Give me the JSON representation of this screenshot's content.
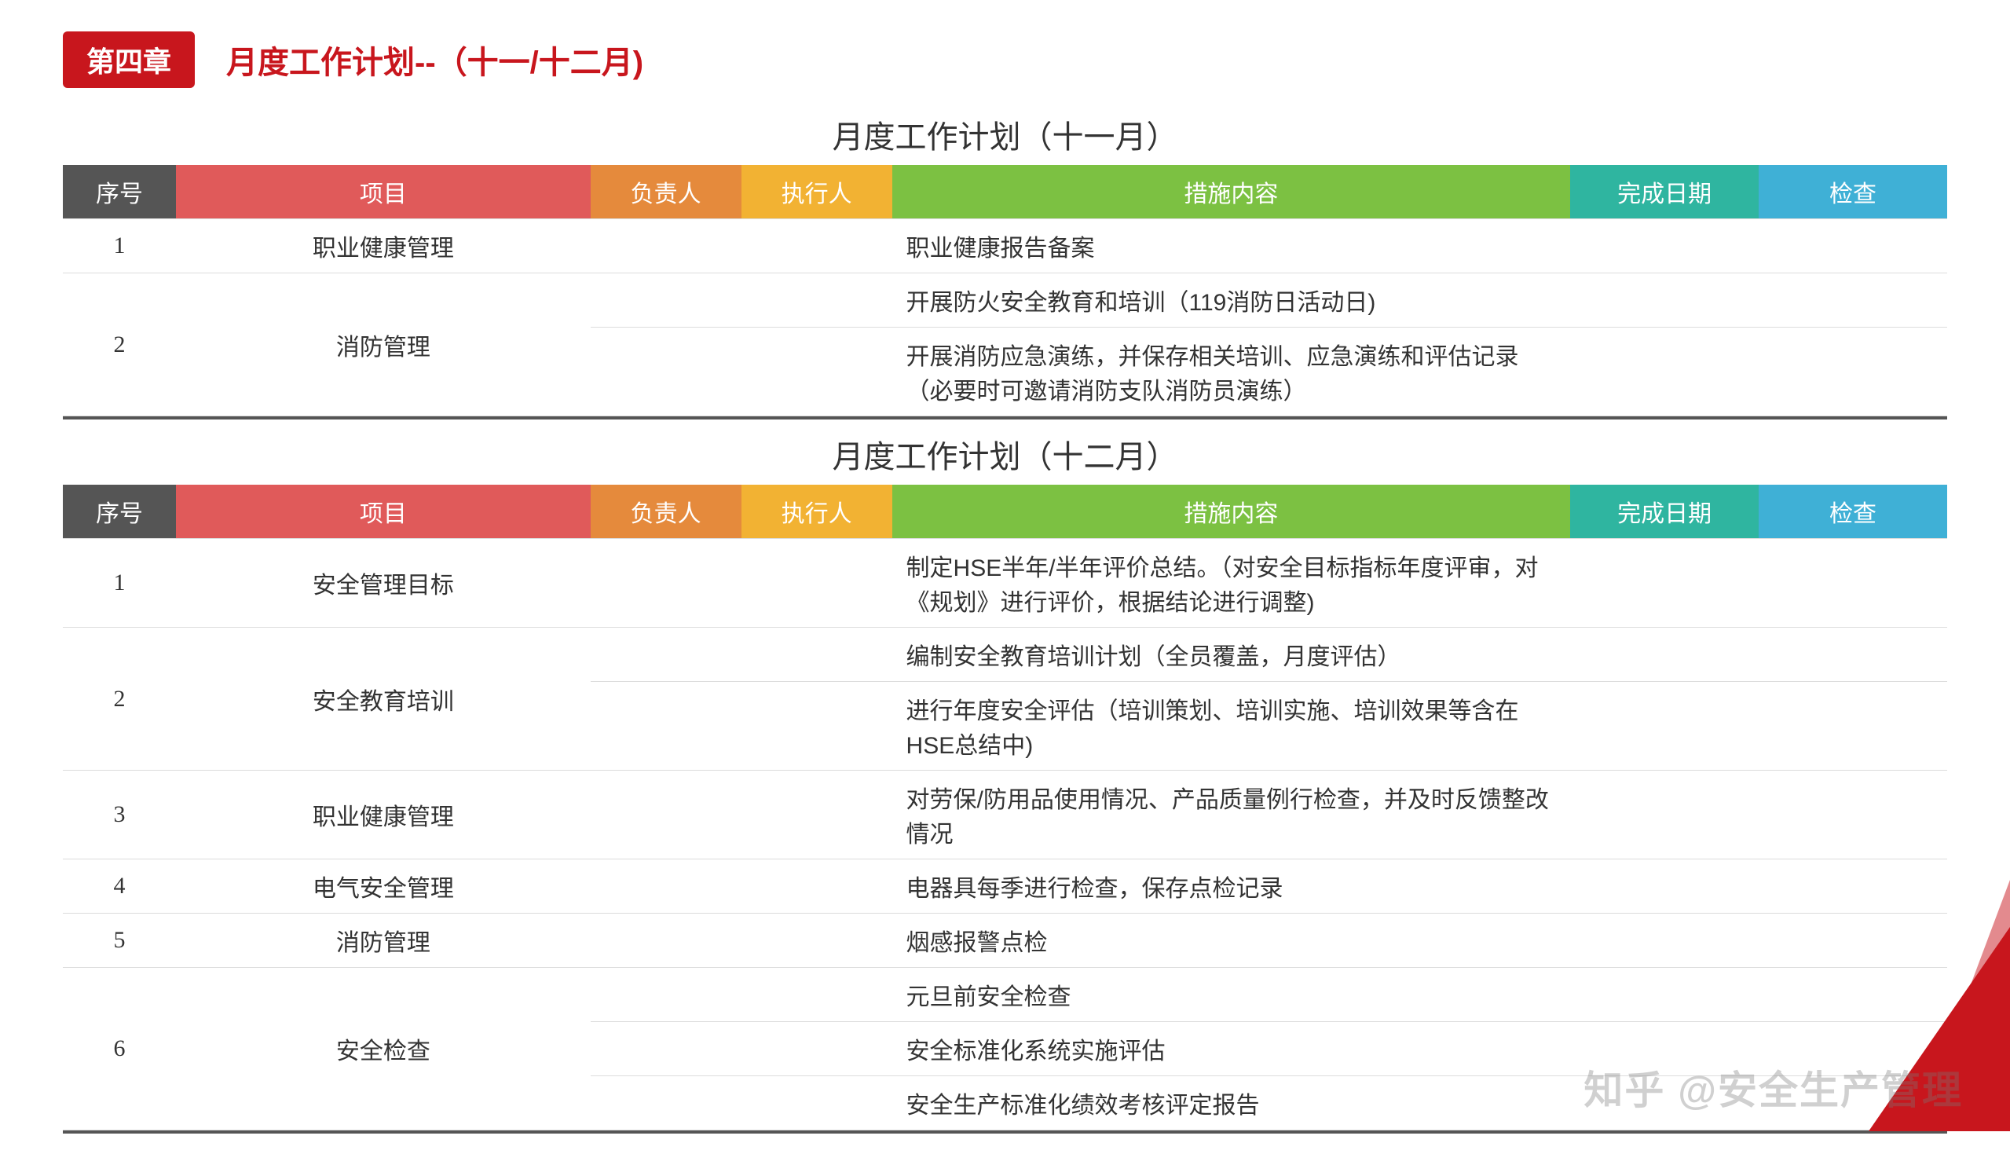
{
  "chapter_tag": "第四章",
  "slide_title": "月度工作计划--（十一/十二月)",
  "watermark": "知乎 @安全生产管理",
  "header_colors": {
    "seq": "#555555",
    "proj": "#e05a5a",
    "resp": "#e58a3c",
    "exec": "#f2b233",
    "meas": "#7cc142",
    "date": "#2fb5a0",
    "check": "#3fb0d6"
  },
  "columns": {
    "seq": "序号",
    "proj": "项目",
    "resp": "负责人",
    "exec": "执行人",
    "meas": "措施内容",
    "date": "完成日期",
    "check": "检查"
  },
  "sections": [
    {
      "title": "月度工作计划（十一月）",
      "rows": [
        {
          "seq": "1",
          "proj": "职业健康管理",
          "resp": "",
          "exec": "",
          "meas": "职业健康报告备案",
          "date": "",
          "check": "",
          "rowspan_seq": 1,
          "rowspan_proj": 1
        },
        {
          "seq": "2",
          "proj": "消防管理",
          "resp": "",
          "exec": "",
          "meas": "开展防火安全教育和培训（119消防日活动日)",
          "date": "",
          "check": "",
          "rowspan_seq": 2,
          "rowspan_proj": 2
        },
        {
          "seq": "",
          "proj": "",
          "resp": "",
          "exec": "",
          "meas": "开展消防应急演练，并保存相关培训、应急演练和评估记录（必要时可邀请消防支队消防员演练）",
          "date": "",
          "check": "",
          "rowspan_seq": 0,
          "rowspan_proj": 0
        }
      ]
    },
    {
      "title": "月度工作计划（十二月）",
      "rows": [
        {
          "seq": "1",
          "proj": "安全管理目标",
          "resp": "",
          "exec": "",
          "meas": "制定HSE半年/半年评价总结。（对安全目标指标年度评审，对《规划》进行评价，根据结论进行调整)",
          "date": "",
          "check": "",
          "rowspan_seq": 1,
          "rowspan_proj": 1
        },
        {
          "seq": "2",
          "proj": "安全教育培训",
          "resp": "",
          "exec": "",
          "meas": "编制安全教育培训计划（全员覆盖，月度评估）",
          "date": "",
          "check": "",
          "rowspan_seq": 2,
          "rowspan_proj": 2
        },
        {
          "seq": "",
          "proj": "",
          "resp": "",
          "exec": "",
          "meas": "进行年度安全评估（培训策划、培训实施、培训效果等含在HSE总结中)",
          "date": "",
          "check": "",
          "rowspan_seq": 0,
          "rowspan_proj": 0
        },
        {
          "seq": "3",
          "proj": "职业健康管理",
          "resp": "",
          "exec": "",
          "meas": "对劳保/防用品使用情况、产品质量例行检查，并及时反馈整改情况",
          "date": "",
          "check": "",
          "rowspan_seq": 1,
          "rowspan_proj": 1
        },
        {
          "seq": "4",
          "proj": "电气安全管理",
          "resp": "",
          "exec": "",
          "meas": "电器具每季进行检查，保存点检记录",
          "date": "",
          "check": "",
          "rowspan_seq": 1,
          "rowspan_proj": 1
        },
        {
          "seq": "5",
          "proj": "消防管理",
          "resp": "",
          "exec": "",
          "meas": "烟感报警点检",
          "date": "",
          "check": "",
          "rowspan_seq": 1,
          "rowspan_proj": 1
        },
        {
          "seq": "6",
          "proj": "安全检查",
          "resp": "",
          "exec": "",
          "meas": "元旦前安全检查",
          "date": "",
          "check": "",
          "rowspan_seq": 3,
          "rowspan_proj": 3
        },
        {
          "seq": "",
          "proj": "",
          "resp": "",
          "exec": "",
          "meas": "安全标准化系统实施评估",
          "date": "",
          "check": "",
          "rowspan_seq": 0,
          "rowspan_proj": 0
        },
        {
          "seq": "",
          "proj": "",
          "resp": "",
          "exec": "",
          "meas": "安全生产标准化绩效考核评定报告",
          "date": "",
          "check": "",
          "rowspan_seq": 0,
          "rowspan_proj": 0
        }
      ]
    }
  ]
}
